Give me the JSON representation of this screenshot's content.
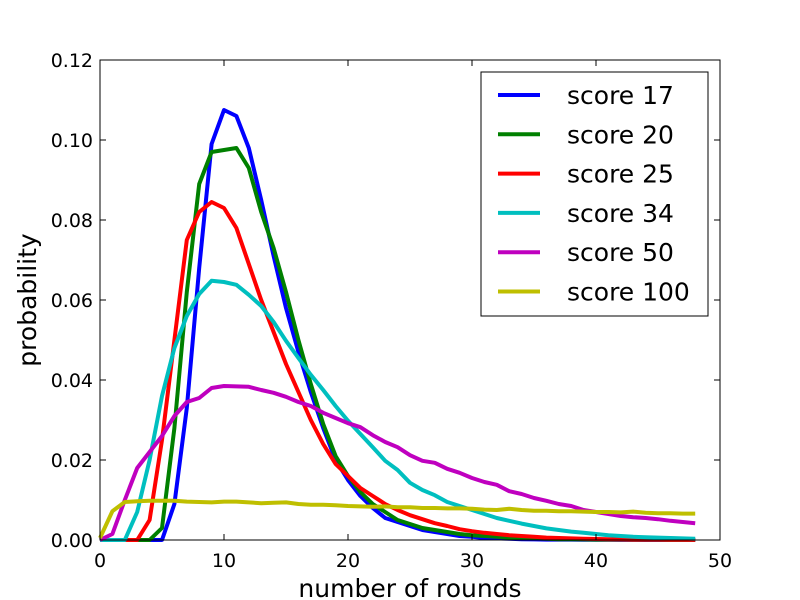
{
  "chart_data": {
    "type": "line",
    "title": "",
    "xlabel": "number of rounds",
    "ylabel": "probability",
    "xlim": [
      0,
      50
    ],
    "ylim": [
      0,
      0.12
    ],
    "xticks": [
      0,
      10,
      20,
      30,
      40,
      50
    ],
    "xtick_labels": [
      "0",
      "10",
      "20",
      "30",
      "40",
      "50"
    ],
    "yticks": [
      0,
      0.02,
      0.04,
      0.06,
      0.08,
      0.1,
      0.12
    ],
    "ytick_labels": [
      "0.00",
      "0.02",
      "0.04",
      "0.06",
      "0.08",
      "0.10",
      "0.12"
    ],
    "grid": false,
    "legend_position": "top-right",
    "x": [
      0,
      1,
      2,
      3,
      4,
      5,
      6,
      7,
      8,
      9,
      10,
      11,
      12,
      13,
      14,
      15,
      16,
      17,
      18,
      19,
      20,
      21,
      22,
      23,
      24,
      25,
      26,
      27,
      28,
      29,
      30,
      31,
      32,
      33,
      34,
      35,
      36,
      37,
      38,
      39,
      40,
      41,
      42,
      43,
      44,
      45,
      46,
      47,
      48
    ],
    "series": [
      {
        "name": "score 17",
        "color": "#0000ff",
        "values": [
          0,
          0,
          0,
          0,
          0,
          0,
          0.009,
          0.033,
          0.068,
          0.099,
          0.1075,
          0.106,
          0.098,
          0.085,
          0.071,
          0.058,
          0.047,
          0.037,
          0.028,
          0.02,
          0.015,
          0.011,
          0.008,
          0.0055,
          0.0045,
          0.0035,
          0.0025,
          0.002,
          0.0015,
          0.001,
          0.0008,
          0.0005,
          0.0004,
          0.0003,
          0.0002,
          0.00015,
          0.0001,
          0.0001,
          0.0001,
          5e-05,
          5e-05,
          5e-05,
          3e-05,
          2e-05,
          1e-05,
          1e-05,
          1e-05,
          1e-05,
          1e-05
        ]
      },
      {
        "name": "score 20",
        "color": "#008000",
        "values": [
          0,
          0,
          0,
          0,
          0,
          0.003,
          0.028,
          0.062,
          0.089,
          0.097,
          0.0975,
          0.098,
          0.093,
          0.082,
          0.073,
          0.062,
          0.05,
          0.039,
          0.029,
          0.021,
          0.016,
          0.012,
          0.009,
          0.007,
          0.005,
          0.004,
          0.003,
          0.0025,
          0.002,
          0.0015,
          0.0012,
          0.001,
          0.0008,
          0.0006,
          0.0005,
          0.0004,
          0.0003,
          0.0002,
          0.0002,
          0.00015,
          0.0001,
          0.0001,
          0.0001,
          5e-05,
          5e-05,
          5e-05,
          3e-05,
          2e-05,
          2e-05
        ]
      },
      {
        "name": "score 25",
        "color": "#ff0000",
        "values": [
          0,
          0,
          0,
          0,
          0.005,
          0.025,
          0.05,
          0.075,
          0.082,
          0.0845,
          0.083,
          0.078,
          0.069,
          0.06,
          0.052,
          0.044,
          0.037,
          0.03,
          0.024,
          0.019,
          0.016,
          0.013,
          0.011,
          0.009,
          0.0075,
          0.0062,
          0.0052,
          0.0042,
          0.0035,
          0.0027,
          0.0022,
          0.0018,
          0.0015,
          0.0012,
          0.001,
          0.0008,
          0.0006,
          0.0005,
          0.0004,
          0.0003,
          0.00025,
          0.0002,
          0.00015,
          0.0001,
          0.0001,
          8e-05,
          6e-05,
          5e-05,
          4e-05
        ]
      },
      {
        "name": "score 34",
        "color": "#00bfbf",
        "values": [
          0,
          0,
          0,
          0.007,
          0.02,
          0.036,
          0.048,
          0.056,
          0.0615,
          0.0648,
          0.0645,
          0.0638,
          0.0613,
          0.0585,
          0.0545,
          0.0498,
          0.0455,
          0.0413,
          0.0375,
          0.0335,
          0.0298,
          0.0265,
          0.0232,
          0.0198,
          0.0175,
          0.0143,
          0.0125,
          0.0112,
          0.0095,
          0.0085,
          0.0075,
          0.0065,
          0.0055,
          0.0048,
          0.0041,
          0.0035,
          0.0029,
          0.0025,
          0.0021,
          0.0018,
          0.0015,
          0.0012,
          0.001,
          0.0008,
          0.0007,
          0.0006,
          0.0005,
          0.0004,
          0.0003
        ]
      },
      {
        "name": "score 50",
        "color": "#bf00bf",
        "values": [
          0,
          0.0015,
          0.01,
          0.018,
          0.022,
          0.026,
          0.031,
          0.0345,
          0.0355,
          0.038,
          0.0385,
          0.0384,
          0.0383,
          0.0375,
          0.0368,
          0.0358,
          0.0345,
          0.0335,
          0.0318,
          0.0305,
          0.0292,
          0.0282,
          0.0262,
          0.0245,
          0.0232,
          0.0212,
          0.0198,
          0.0193,
          0.0178,
          0.0168,
          0.0155,
          0.0145,
          0.0138,
          0.0122,
          0.0115,
          0.0105,
          0.0098,
          0.009,
          0.0085,
          0.0075,
          0.007,
          0.0065,
          0.006,
          0.0057,
          0.0055,
          0.0052,
          0.0048,
          0.0045,
          0.0042
        ]
      },
      {
        "name": "score 100",
        "color": "#bfbf00",
        "values": [
          0.0005,
          0.0072,
          0.0095,
          0.0097,
          0.0098,
          0.0098,
          0.0098,
          0.0096,
          0.0095,
          0.0094,
          0.0096,
          0.0096,
          0.0094,
          0.0092,
          0.0093,
          0.0094,
          0.009,
          0.0088,
          0.0088,
          0.0087,
          0.0085,
          0.0084,
          0.0083,
          0.0084,
          0.0082,
          0.0082,
          0.008,
          0.008,
          0.0079,
          0.0079,
          0.0078,
          0.0076,
          0.0075,
          0.0078,
          0.0075,
          0.0073,
          0.0073,
          0.0072,
          0.0072,
          0.0071,
          0.007,
          0.007,
          0.0069,
          0.0071,
          0.0068,
          0.0067,
          0.0067,
          0.0066,
          0.0066
        ]
      }
    ]
  }
}
